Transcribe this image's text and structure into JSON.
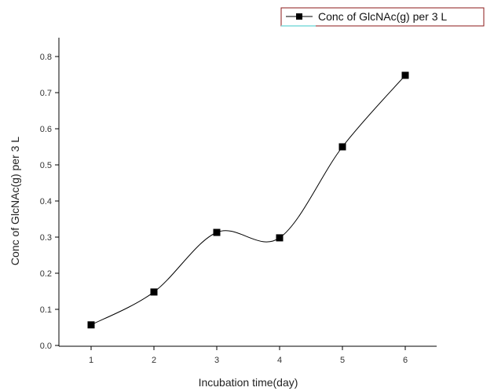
{
  "chart_data": {
    "type": "line",
    "title": "",
    "xlabel": "Incubation time(day)",
    "ylabel": "Conc of GlcNAc(g) per 3 L",
    "x": [
      1,
      2,
      3,
      4,
      5,
      6
    ],
    "x_ticks": [
      "1",
      "2",
      "3",
      "4",
      "5",
      "6"
    ],
    "y_ticks": [
      "0.0",
      "0.1",
      "0.2",
      "0.3",
      "0.4",
      "0.5",
      "0.6",
      "0.7",
      "0.8"
    ],
    "xlim": [
      0.5,
      6.5
    ],
    "ylim": [
      0.0,
      0.85
    ],
    "grid": false,
    "legend_position": "top-right",
    "series": [
      {
        "name": "Conc of GlcNAc(g) per 3 L",
        "values": [
          0.057,
          0.148,
          0.313,
          0.298,
          0.55,
          0.748
        ],
        "marker": "square",
        "line": "smooth"
      }
    ],
    "colors": {
      "line": "#000000",
      "marker": "#000000",
      "legend_border": "#8b1a1a",
      "legend_underline": "#7fdcdc"
    }
  }
}
